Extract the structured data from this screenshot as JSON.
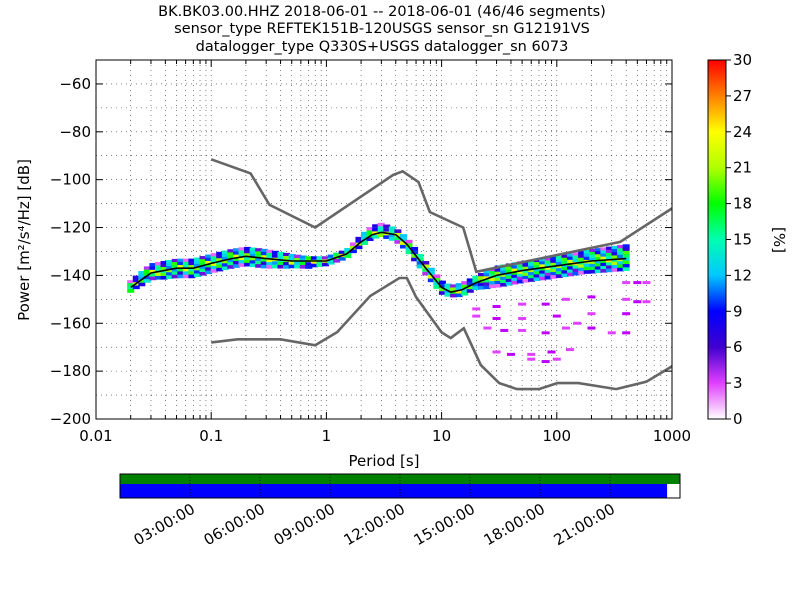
{
  "title_lines": [
    "BK.BK03.00.HHZ   2018-06-01 -- 2018-06-01  (46/46 segments)",
    "sensor_type REFTEK151B-120USGS sensor_sn G12191VS",
    "datalogger_type Q330S+USGS datalogger_sn 6073"
  ],
  "colorbar": {
    "label": "[%]",
    "ticks": [
      "0",
      "3",
      "6",
      "9",
      "12",
      "15",
      "18",
      "21",
      "24",
      "27",
      "30"
    ],
    "range": [
      0,
      30
    ]
  },
  "timeline": {
    "ticks": [
      "03:00:00",
      "06:00:00",
      "09:00:00",
      "12:00:00",
      "15:00:00",
      "18:00:00",
      "21:00:00"
    ],
    "colors": {
      "top": "#008000",
      "bottom": "#0000ff"
    },
    "coverage_fraction": 0.977
  },
  "chart_data": {
    "type": "heatmap",
    "title": "BK.BK03.00.HHZ   2018-06-01 -- 2018-06-01  (46/46 segments)",
    "xlabel": "Period [s]",
    "ylabel": "Power [m²/s⁴/Hz] [dB]",
    "xscale": "log",
    "xlim": [
      0.01,
      1000
    ],
    "ylim": [
      -200,
      -50
    ],
    "xticks": [
      "0.01",
      "0.1",
      "1",
      "10",
      "100",
      "1000"
    ],
    "yticks": [
      "−200",
      "−180",
      "−160",
      "−140",
      "−120",
      "−100",
      "−80",
      "−60"
    ],
    "grid": true,
    "noise_model_high": {
      "period": [
        0.1,
        0.22,
        0.32,
        0.8,
        3.8,
        4.6,
        6.3,
        7.9,
        15.4,
        20,
        354.8,
        1000
      ],
      "power": [
        -91.5,
        -97.4,
        -110.5,
        -120,
        -98,
        -96.5,
        -101,
        -113.5,
        -120,
        -138.5,
        -126,
        -112
      ]
    },
    "noise_model_low": {
      "period": [
        0.1,
        0.17,
        0.4,
        0.8,
        1.24,
        2.4,
        4.3,
        5,
        6,
        10,
        12,
        15.6,
        21.9,
        31.6,
        45,
        70,
        101,
        154,
        328,
        600,
        1000
      ],
      "power": [
        -168,
        -166.7,
        -166.7,
        -169.2,
        -163.7,
        -148.6,
        -141.1,
        -141.1,
        -149,
        -163.8,
        -166.2,
        -162.1,
        -177.5,
        -185,
        -187.5,
        -187.5,
        -185,
        -185,
        -187.5,
        -184.4,
        -178
      ]
    },
    "median": {
      "period": [
        0.02,
        0.03,
        0.05,
        0.07,
        0.1,
        0.15,
        0.2,
        0.3,
        0.5,
        0.7,
        1,
        1.5,
        2,
        2.5,
        3,
        4,
        5,
        7,
        10,
        12,
        15,
        20,
        30,
        50,
        100,
        200,
        400
      ],
      "power": [
        -145,
        -139,
        -137,
        -137,
        -135,
        -133,
        -132,
        -133,
        -134,
        -134,
        -134,
        -131,
        -126,
        -123,
        -122,
        -123,
        -127,
        -136,
        -145,
        -147,
        -146,
        -143,
        -140,
        -138,
        -136,
        -134,
        -133
      ]
    },
    "mode_band": {
      "period": [
        0.02,
        0.03,
        0.05,
        0.07,
        0.1,
        0.15,
        0.2,
        0.3,
        0.5,
        0.7,
        1,
        1.5,
        2,
        2.5,
        3,
        4,
        5,
        7,
        10,
        12,
        15,
        20,
        30,
        50,
        100,
        200,
        400
      ],
      "upper": [
        -142,
        -135,
        -133,
        -133,
        -131,
        -129,
        -128,
        -129,
        -131,
        -132,
        -132,
        -129,
        -123,
        -119,
        -118,
        -120,
        -124,
        -133,
        -142,
        -144,
        -143,
        -140,
        -136,
        -134,
        -132,
        -129,
        -127
      ],
      "lower": [
        -147,
        -142,
        -141,
        -141,
        -139,
        -137,
        -136,
        -137,
        -137,
        -137,
        -136,
        -133,
        -128,
        -125,
        -124,
        -126,
        -130,
        -139,
        -148,
        -149,
        -149,
        -146,
        -145,
        -143,
        -141,
        -139,
        -138
      ]
    },
    "outlier_segments": [
      {
        "period": [
          20,
          30,
          50,
          80,
          120,
          200
        ],
        "power": [
          -154,
          -153,
          -152,
          -152,
          -150,
          -149
        ]
      },
      {
        "period": [
          20,
          30,
          50,
          100,
          200,
          400
        ],
        "power": [
          -157,
          -158,
          -158,
          -157,
          -156,
          -156
        ]
      },
      {
        "period": [
          25,
          35,
          50,
          80,
          120
        ],
        "power": [
          -162,
          -163,
          -163,
          -164,
          -162
        ]
      },
      {
        "period": [
          30,
          40,
          60,
          90,
          130
        ],
        "power": [
          -172,
          -173,
          -173,
          -172,
          -171
        ]
      },
      {
        "period": [
          60,
          80,
          100
        ],
        "power": [
          -175,
          -176,
          -175
        ]
      },
      {
        "period": [
          150,
          200,
          300,
          400
        ],
        "power": [
          -160,
          -162,
          -164,
          -164
        ]
      },
      {
        "period": [
          400,
          500,
          600
        ],
        "power": [
          -143,
          -143,
          -143
        ]
      },
      {
        "period": [
          400,
          500,
          600
        ],
        "power": [
          -150,
          -151,
          -151
        ]
      }
    ]
  }
}
